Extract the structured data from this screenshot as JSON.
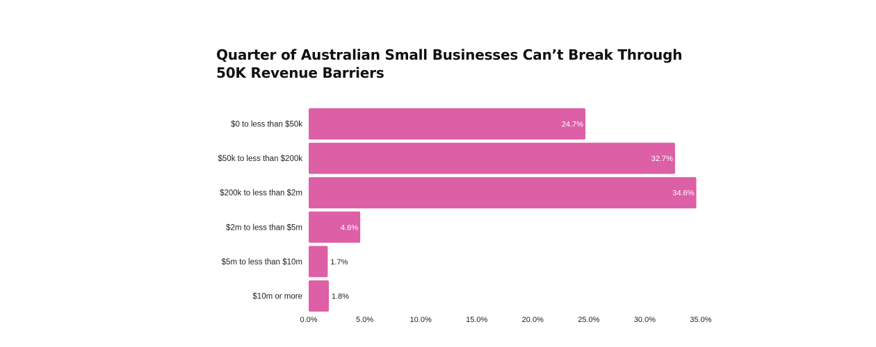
{
  "chart_data": {
    "type": "bar",
    "orientation": "horizontal",
    "title": "Quarter of Australian Small Businesses Can’t Break Through 50K Revenue Barriers",
    "categories": [
      "$0 to less than $50k",
      "$50k to less than $200k",
      "$200k to less than $2m",
      "$2m to less than $5m",
      "$5m to less than $10m",
      "$10m or more"
    ],
    "values": [
      24.7,
      32.7,
      34.6,
      4.6,
      1.7,
      1.8
    ],
    "value_labels": [
      "24.7%",
      "32.7%",
      "34.6%",
      "4.6%",
      "1.7%",
      "1.8%"
    ],
    "xlim": [
      0,
      35
    ],
    "xticks": [
      0,
      5,
      10,
      15,
      20,
      25,
      30,
      35
    ],
    "xtick_labels": [
      "0.0%",
      "5.0%",
      "10.0%",
      "15.0%",
      "20.0%",
      "25.0%",
      "30.0%",
      "35.0%"
    ],
    "xlabel": "",
    "ylabel": "",
    "grid": false,
    "legend": "none",
    "bar_color": "#dd5fa6"
  }
}
